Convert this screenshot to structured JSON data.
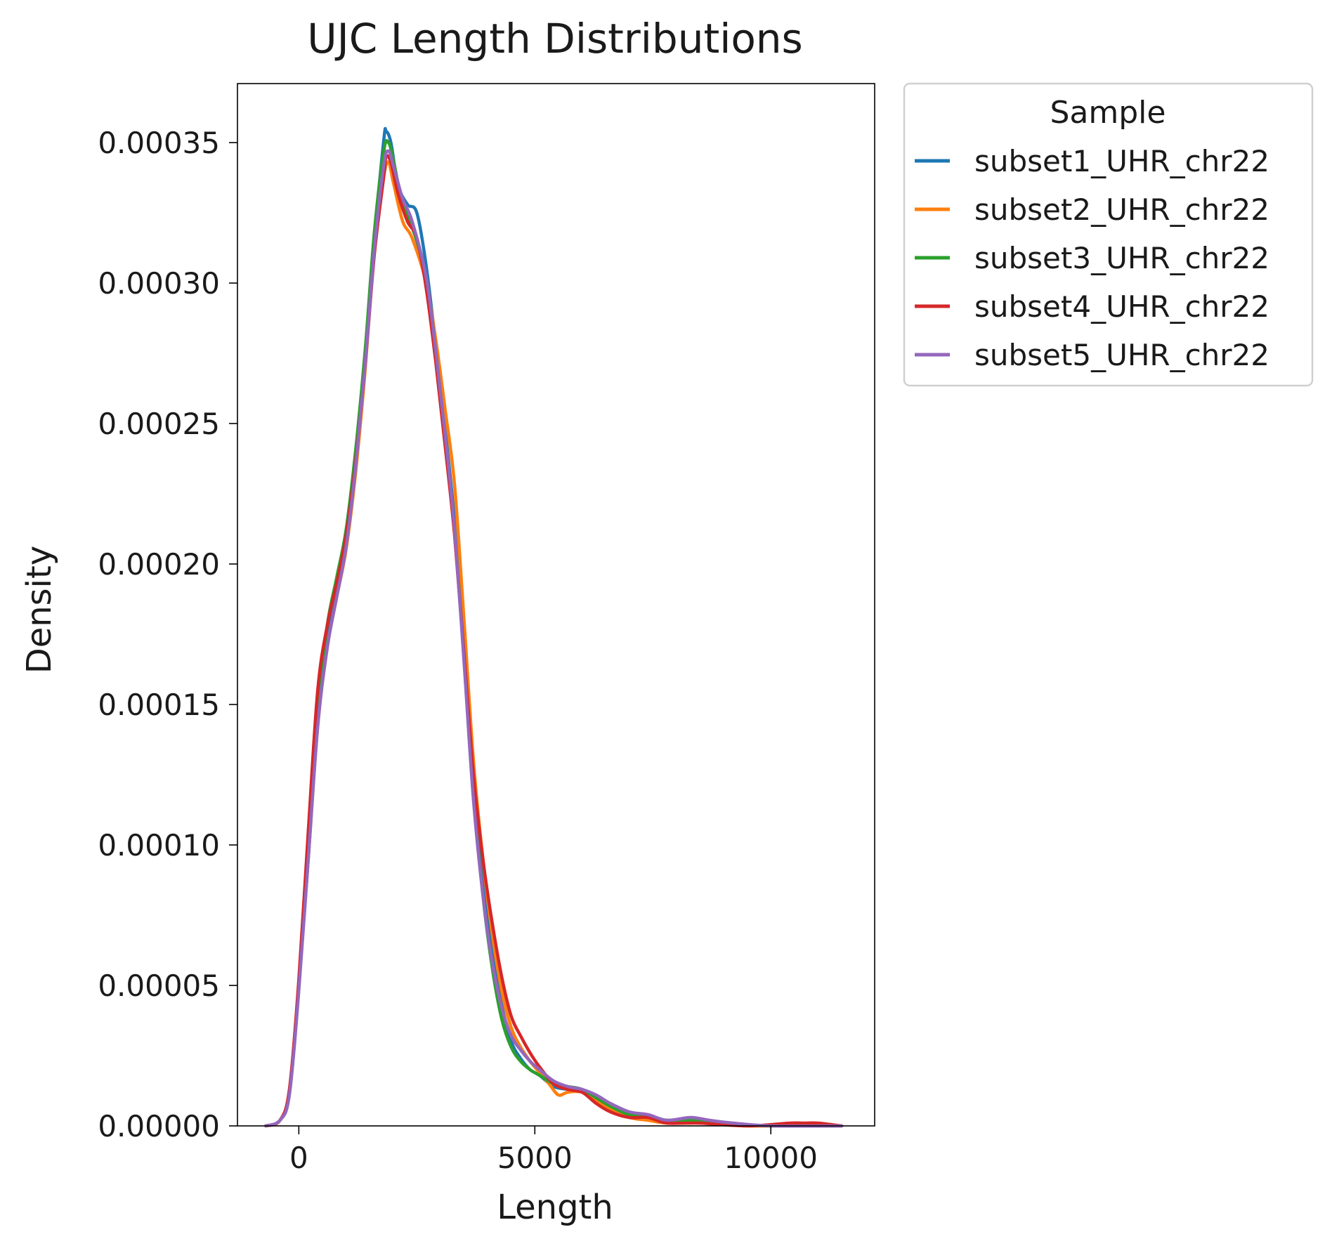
{
  "chart_data": {
    "type": "line",
    "title": "UJC Length Distributions",
    "xlabel": "Length",
    "ylabel": "Density",
    "xlim": [
      -1300,
      12200
    ],
    "ylim": [
      0,
      0.000371
    ],
    "x_ticks": [
      0,
      5000,
      10000
    ],
    "x_tick_labels": [
      "0",
      "5000",
      "10000"
    ],
    "y_ticks": [
      0,
      5e-05,
      0.0001,
      0.00015,
      0.0002,
      0.00025,
      0.0003,
      0.00035
    ],
    "y_tick_labels": [
      "0.00000",
      "0.00005",
      "0.00010",
      "0.00015",
      "0.00020",
      "0.00025",
      "0.00030",
      "0.00035"
    ],
    "grid": false,
    "legend": {
      "title": "Sample",
      "placement": "outside upper right"
    },
    "series": [
      {
        "name": "subset1_UHR_chr22",
        "color": "#1f77b4",
        "points": [
          [
            -700,
            0
          ],
          [
            -400,
            2e-06
          ],
          [
            -200,
            1.2e-05
          ],
          [
            0,
            5e-05
          ],
          [
            200,
            9.5e-05
          ],
          [
            400,
            0.000145
          ],
          [
            600,
            0.000172
          ],
          [
            800,
            0.00019
          ],
          [
            1000,
            0.000207
          ],
          [
            1200,
            0.000235
          ],
          [
            1400,
            0.00027
          ],
          [
            1600,
            0.000315
          ],
          [
            1800,
            0.000351
          ],
          [
            1850,
            0.000354
          ],
          [
            1950,
            0.00035
          ],
          [
            2100,
            0.000335
          ],
          [
            2300,
            0.000328
          ],
          [
            2500,
            0.000325
          ],
          [
            2700,
            0.000306
          ],
          [
            2900,
            0.000278
          ],
          [
            3100,
            0.000248
          ],
          [
            3300,
            0.000215
          ],
          [
            3500,
            0.00017
          ],
          [
            3700,
            0.000122
          ],
          [
            3900,
            8.8e-05
          ],
          [
            4100,
            6.2e-05
          ],
          [
            4300,
            4.3e-05
          ],
          [
            4500,
            3e-05
          ],
          [
            4700,
            2.4e-05
          ],
          [
            4900,
            2e-05
          ],
          [
            5100,
            1.8e-05
          ],
          [
            5400,
            1.4e-05
          ],
          [
            5700,
            1.3e-05
          ],
          [
            6000,
            1.2e-05
          ],
          [
            6300,
            9e-06
          ],
          [
            6600,
            6e-06
          ],
          [
            7000,
            4e-06
          ],
          [
            7400,
            3e-06
          ],
          [
            7800,
            2e-06
          ],
          [
            8300,
            2e-06
          ],
          [
            9000,
            1e-06
          ],
          [
            10000,
            0
          ],
          [
            11500,
            0
          ]
        ]
      },
      {
        "name": "subset2_UHR_chr22",
        "color": "#ff7f0e",
        "points": [
          [
            -700,
            0
          ],
          [
            -400,
            2e-06
          ],
          [
            -200,
            1.2e-05
          ],
          [
            0,
            5e-05
          ],
          [
            200,
            9.5e-05
          ],
          [
            400,
            0.000142
          ],
          [
            600,
            0.00017
          ],
          [
            800,
            0.000188
          ],
          [
            1000,
            0.000205
          ],
          [
            1200,
            0.000232
          ],
          [
            1400,
            0.000268
          ],
          [
            1600,
            0.000312
          ],
          [
            1800,
            0.000338
          ],
          [
            1900,
            0.000343
          ],
          [
            2000,
            0.000336
          ],
          [
            2200,
            0.000322
          ],
          [
            2400,
            0.000316
          ],
          [
            2700,
            0.0003
          ],
          [
            2900,
            0.00028
          ],
          [
            3100,
            0.000255
          ],
          [
            3300,
            0.000228
          ],
          [
            3500,
            0.00018
          ],
          [
            3700,
            0.00013
          ],
          [
            3900,
            9.5e-05
          ],
          [
            4100,
            6.8e-05
          ],
          [
            4300,
            4.8e-05
          ],
          [
            4500,
            3.5e-05
          ],
          [
            4700,
            2.8e-05
          ],
          [
            4900,
            2.3e-05
          ],
          [
            5100,
            1.9e-05
          ],
          [
            5300,
            1.5e-05
          ],
          [
            5500,
            1.1e-05
          ],
          [
            5700,
            1.2e-05
          ],
          [
            6000,
            1.2e-05
          ],
          [
            6300,
            9e-06
          ],
          [
            6600,
            6e-06
          ],
          [
            7000,
            3e-06
          ],
          [
            7400,
            2e-06
          ],
          [
            7800,
            1e-06
          ],
          [
            8500,
            1e-06
          ],
          [
            9500,
            0
          ],
          [
            11500,
            0
          ]
        ]
      },
      {
        "name": "subset3_UHR_chr22",
        "color": "#2ca02c",
        "points": [
          [
            -700,
            0
          ],
          [
            -400,
            2e-06
          ],
          [
            -200,
            1.2e-05
          ],
          [
            0,
            5e-05
          ],
          [
            200,
            0.0001
          ],
          [
            400,
            0.000148
          ],
          [
            600,
            0.000178
          ],
          [
            800,
            0.000195
          ],
          [
            1000,
            0.000212
          ],
          [
            1200,
            0.00024
          ],
          [
            1400,
            0.000275
          ],
          [
            1600,
            0.000318
          ],
          [
            1800,
            0.000347
          ],
          [
            1900,
            0.00035
          ],
          [
            2000,
            0.000344
          ],
          [
            2200,
            0.000328
          ],
          [
            2400,
            0.00032
          ],
          [
            2700,
            0.000302
          ],
          [
            2900,
            0.000276
          ],
          [
            3100,
            0.000246
          ],
          [
            3300,
            0.000212
          ],
          [
            3500,
            0.000168
          ],
          [
            3700,
            0.000118
          ],
          [
            3900,
            8.2e-05
          ],
          [
            4100,
            5.6e-05
          ],
          [
            4300,
            3.8e-05
          ],
          [
            4500,
            2.8e-05
          ],
          [
            4700,
            2.3e-05
          ],
          [
            4900,
            2e-05
          ],
          [
            5100,
            1.8e-05
          ],
          [
            5400,
            1.5e-05
          ],
          [
            5700,
            1.4e-05
          ],
          [
            6000,
            1.3e-05
          ],
          [
            6300,
            1e-05
          ],
          [
            6600,
            7e-06
          ],
          [
            7000,
            4e-06
          ],
          [
            7400,
            3e-06
          ],
          [
            7800,
            2e-06
          ],
          [
            8300,
            2e-06
          ],
          [
            9000,
            1e-06
          ],
          [
            10000,
            0
          ],
          [
            11500,
            0
          ]
        ]
      },
      {
        "name": "subset4_UHR_chr22",
        "color": "#d62728",
        "points": [
          [
            -700,
            0
          ],
          [
            -400,
            2e-06
          ],
          [
            -200,
            1.3e-05
          ],
          [
            0,
            5.2e-05
          ],
          [
            200,
            0.000105
          ],
          [
            400,
            0.000155
          ],
          [
            600,
            0.000178
          ],
          [
            800,
            0.000193
          ],
          [
            1000,
            0.00021
          ],
          [
            1200,
            0.000236
          ],
          [
            1400,
            0.00027
          ],
          [
            1600,
            0.00031
          ],
          [
            1800,
            0.000338
          ],
          [
            1850,
            0.000345
          ],
          [
            1950,
            0.000343
          ],
          [
            2100,
            0.000332
          ],
          [
            2300,
            0.000322
          ],
          [
            2500,
            0.000316
          ],
          [
            2700,
            0.000298
          ],
          [
            2900,
            0.000272
          ],
          [
            3100,
            0.000242
          ],
          [
            3300,
            0.00021
          ],
          [
            3500,
            0.000168
          ],
          [
            3700,
            0.000125
          ],
          [
            3900,
            9.5e-05
          ],
          [
            4100,
            7.2e-05
          ],
          [
            4300,
            5.3e-05
          ],
          [
            4500,
            3.9e-05
          ],
          [
            4700,
            3.2e-05
          ],
          [
            4900,
            2.6e-05
          ],
          [
            5100,
            2.1e-05
          ],
          [
            5400,
            1.5e-05
          ],
          [
            5700,
            1.3e-05
          ],
          [
            6000,
            1.2e-05
          ],
          [
            6300,
            8e-06
          ],
          [
            6600,
            5e-06
          ],
          [
            7000,
            3e-06
          ],
          [
            7400,
            3e-06
          ],
          [
            7800,
            1e-06
          ],
          [
            8500,
            1e-06
          ],
          [
            9500,
            0
          ],
          [
            10400,
            1e-06
          ],
          [
            10700,
            1e-06
          ],
          [
            11000,
            1e-06
          ],
          [
            11500,
            0
          ]
        ]
      },
      {
        "name": "subset5_UHR_chr22",
        "color": "#9467bd",
        "points": [
          [
            -700,
            0
          ],
          [
            -400,
            2e-06
          ],
          [
            -200,
            1.1e-05
          ],
          [
            0,
            4.8e-05
          ],
          [
            200,
            9.5e-05
          ],
          [
            400,
            0.000142
          ],
          [
            600,
            0.00017
          ],
          [
            800,
            0.000188
          ],
          [
            1000,
            0.000206
          ],
          [
            1200,
            0.000234
          ],
          [
            1400,
            0.00027
          ],
          [
            1600,
            0.000312
          ],
          [
            1800,
            0.000342
          ],
          [
            1900,
            0.000347
          ],
          [
            2000,
            0.000342
          ],
          [
            2200,
            0.00033
          ],
          [
            2400,
            0.000322
          ],
          [
            2700,
            0.000302
          ],
          [
            2900,
            0.000276
          ],
          [
            3100,
            0.000246
          ],
          [
            3300,
            0.000212
          ],
          [
            3500,
            0.000165
          ],
          [
            3700,
            0.000116
          ],
          [
            3900,
            8.2e-05
          ],
          [
            4100,
            5.8e-05
          ],
          [
            4300,
            4.2e-05
          ],
          [
            4500,
            3.2e-05
          ],
          [
            4700,
            2.7e-05
          ],
          [
            4900,
            2.3e-05
          ],
          [
            5100,
            2e-05
          ],
          [
            5400,
            1.6e-05
          ],
          [
            5700,
            1.4e-05
          ],
          [
            6000,
            1.3e-05
          ],
          [
            6300,
            1.1e-05
          ],
          [
            6600,
            8e-06
          ],
          [
            7000,
            5e-06
          ],
          [
            7400,
            4e-06
          ],
          [
            7800,
            2e-06
          ],
          [
            8300,
            3e-06
          ],
          [
            8700,
            2e-06
          ],
          [
            9200,
            1e-06
          ],
          [
            10000,
            0
          ],
          [
            11500,
            0
          ]
        ]
      }
    ]
  }
}
